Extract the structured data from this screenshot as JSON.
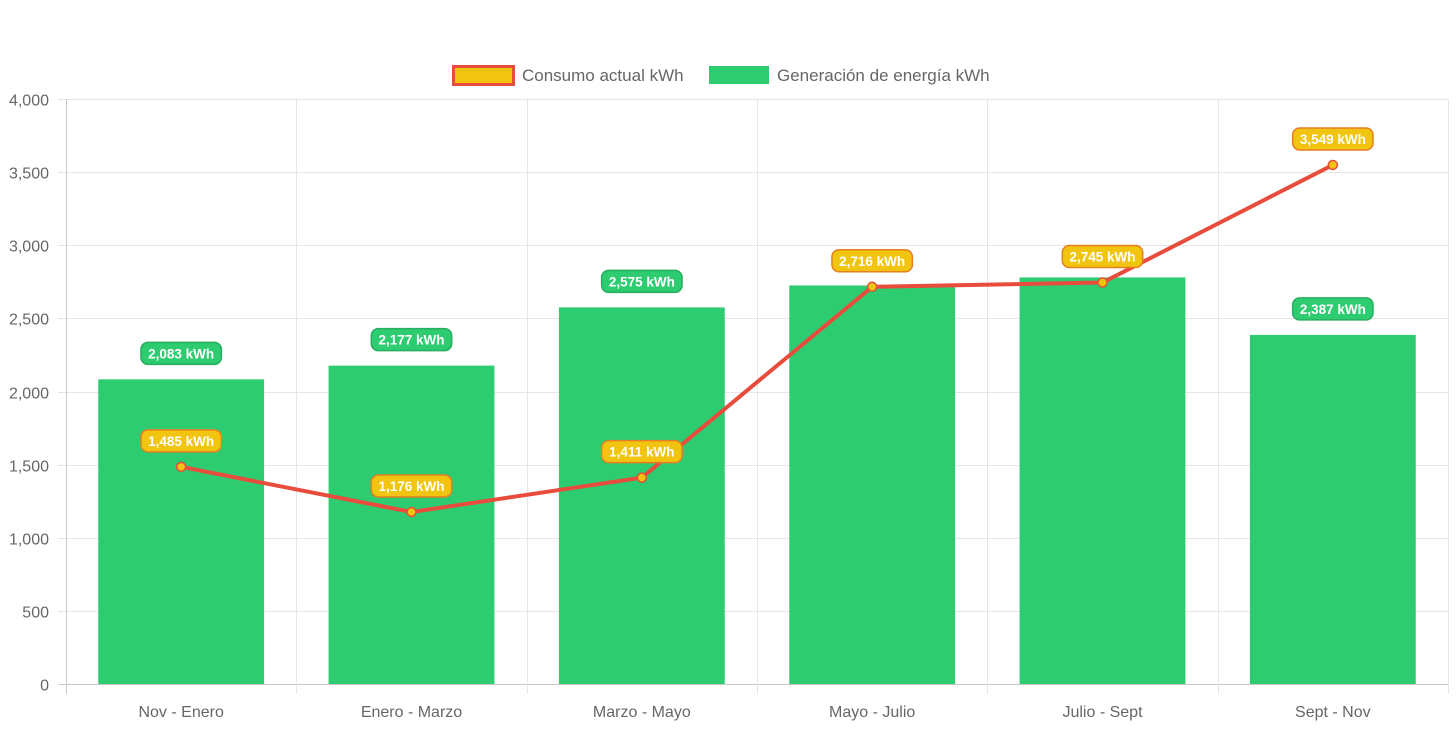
{
  "chart_data": {
    "type": "bar",
    "categories": [
      "Nov - Enero",
      "Enero - Marzo",
      "Marzo - Mayo",
      "Mayo - Julio",
      "Julio - Sept",
      "Sept - Nov"
    ],
    "ylim": [
      0,
      4000
    ],
    "yticks": [
      0,
      500,
      1000,
      1500,
      2000,
      2500,
      3000,
      3500,
      4000
    ],
    "ytick_labels": [
      "0",
      "500",
      "1,000",
      "1,500",
      "2,000",
      "2,500",
      "3,000",
      "3,500",
      "4,000"
    ],
    "grid": true,
    "legend_position": "top",
    "label_suffix": " kWh",
    "series": [
      {
        "name": "Consumo actual kWh",
        "type": "line",
        "values": [
          1485,
          1176,
          1411,
          2716,
          2745,
          3549
        ],
        "labels": [
          "1,485 kWh",
          "1,176 kWh",
          "1,411 kWh",
          "2,716 kWh",
          "2,745 kWh",
          "3,549 kWh"
        ],
        "color": "#e74c3c",
        "fill_color": "#f1c40f"
      },
      {
        "name": "Generación de energía kWh",
        "type": "bar",
        "values": [
          2083,
          2177,
          2575,
          2725,
          2780,
          2387
        ],
        "labels": [
          "2,083 kWh",
          "2,177 kWh",
          "2,575 kWh",
          "",
          "",
          "2,387 kWh"
        ],
        "color": "#2ecc71"
      }
    ]
  }
}
